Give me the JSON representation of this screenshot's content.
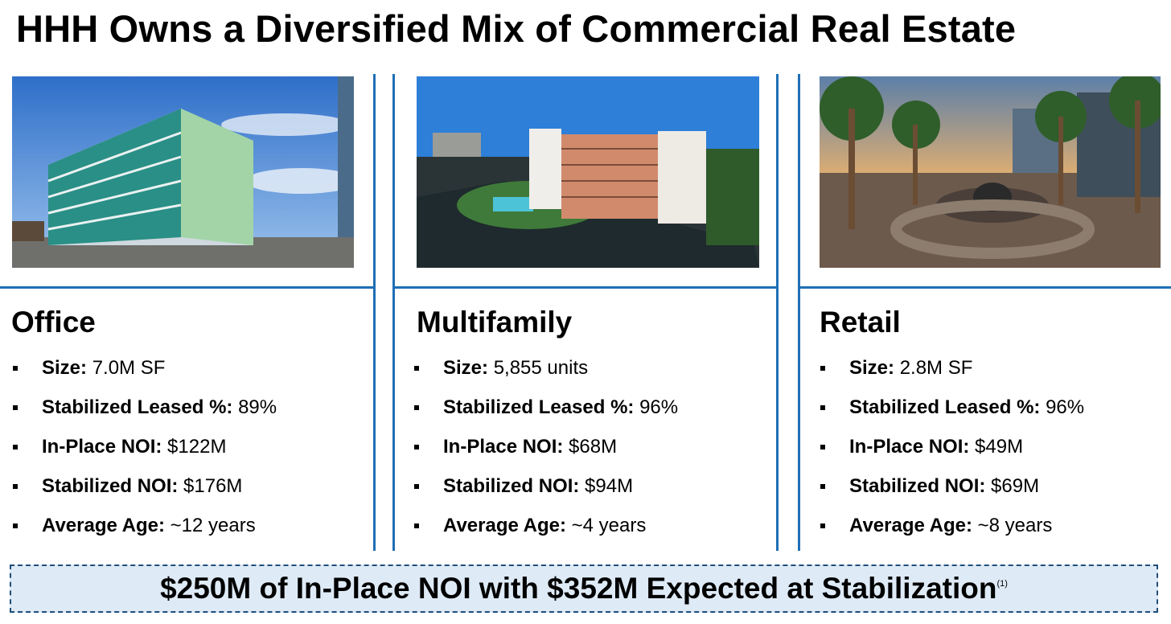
{
  "title": "HHH Owns a Diversified Mix of Commercial Real Estate",
  "columns": [
    {
      "category": "Office",
      "image": "office-building-photo",
      "items": [
        {
          "label": "Size:",
          "value": "7.0M SF"
        },
        {
          "label": "Stabilized Leased %:",
          "value": "89%"
        },
        {
          "label": "In-Place NOI:",
          "value": "$122M"
        },
        {
          "label": "Stabilized NOI:",
          "value": "$176M"
        },
        {
          "label": "Average Age:",
          "value": "~12 years"
        }
      ]
    },
    {
      "category": "Multifamily",
      "image": "multifamily-building-photo",
      "items": [
        {
          "label": "Size:",
          "value": "5,855 units"
        },
        {
          "label": "Stabilized Leased %:",
          "value": "96%"
        },
        {
          "label": "In-Place NOI:",
          "value": "$68M"
        },
        {
          "label": "Stabilized NOI:",
          "value": "$94M"
        },
        {
          "label": "Average Age:",
          "value": "~4 years"
        }
      ]
    },
    {
      "category": "Retail",
      "image": "retail-plaza-photo",
      "items": [
        {
          "label": "Size:",
          "value": "2.8M SF"
        },
        {
          "label": "Stabilized Leased %:",
          "value": "96%"
        },
        {
          "label": "In-Place NOI:",
          "value": "$49M"
        },
        {
          "label": "Stabilized NOI:",
          "value": "$69M"
        },
        {
          "label": "Average Age:",
          "value": "~8 years"
        }
      ]
    }
  ],
  "banner": {
    "text": "$250M of In-Place NOI with $352M Expected at Stabilization",
    "footnote": "(1)"
  },
  "colors": {
    "accent": "#1f6fb5",
    "banner_bg": "#deeaf6",
    "banner_border": "#1f4e79"
  }
}
